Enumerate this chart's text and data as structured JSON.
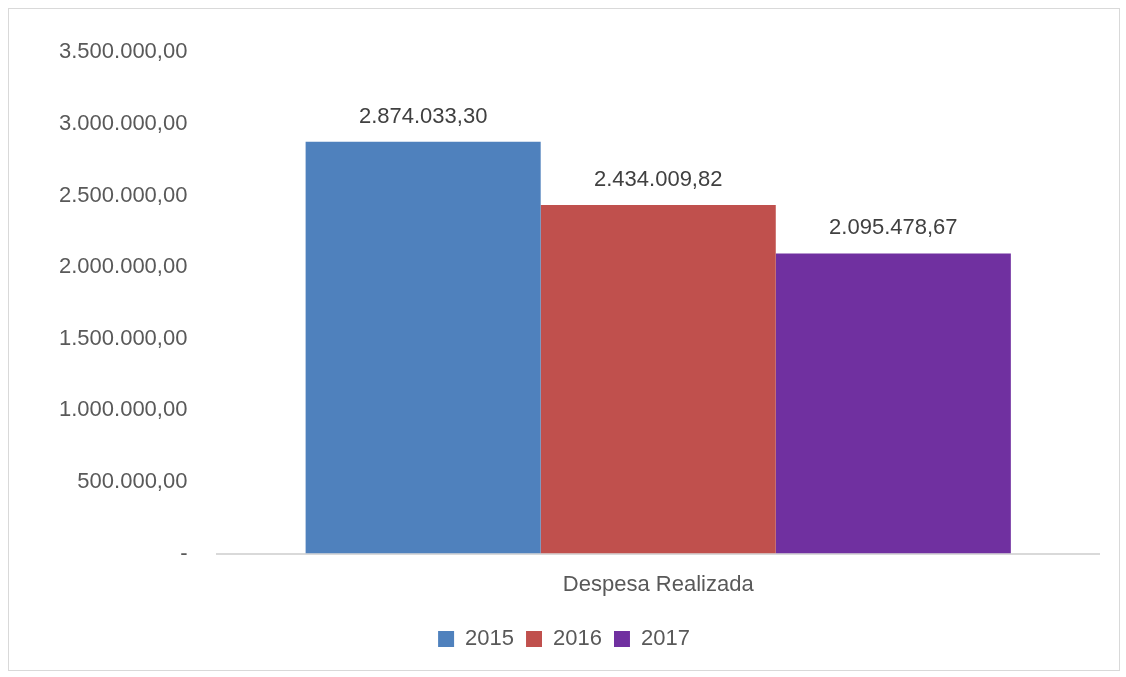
{
  "chart_data": {
    "type": "bar",
    "categories": [
      "Despesa Realizada"
    ],
    "series": [
      {
        "name": "2015",
        "color": "#4f81bd",
        "values": [
          2874033.3
        ],
        "value_labels": [
          "2.874.033,30"
        ]
      },
      {
        "name": "2016",
        "color": "#c0504d",
        "values": [
          2434009.82
        ],
        "value_labels": [
          "2.434.009,82"
        ]
      },
      {
        "name": "2017",
        "color": "#7030a0",
        "values": [
          2095478.67
        ],
        "value_labels": [
          "2.095.478,67"
        ]
      }
    ],
    "ylim": [
      0,
      3500000
    ],
    "yticks": [
      {
        "value": 0,
        "label": "-"
      },
      {
        "value": 500000,
        "label": "500.000,00"
      },
      {
        "value": 1000000,
        "label": "1.000.000,00"
      },
      {
        "value": 1500000,
        "label": "1.500.000,00"
      },
      {
        "value": 2000000,
        "label": "2.000.000,00"
      },
      {
        "value": 2500000,
        "label": "2.500.000,00"
      },
      {
        "value": 3000000,
        "label": "3.000.000,00"
      },
      {
        "value": 3500000,
        "label": "3.500.000,00"
      }
    ],
    "grid": false,
    "legend": "bottom"
  }
}
